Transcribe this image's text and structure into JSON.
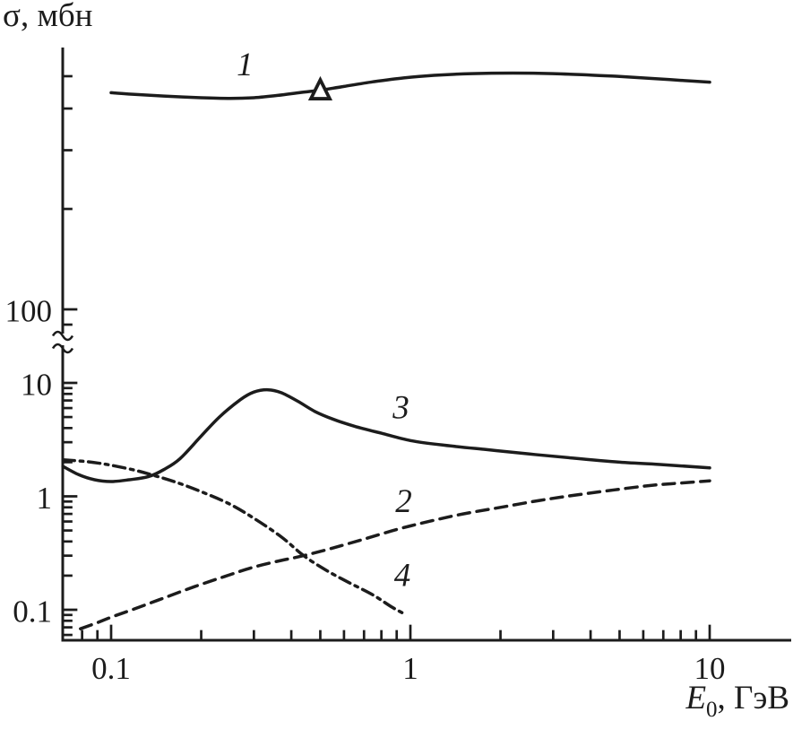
{
  "figure": {
    "y_axis_title": "σ, мбн",
    "x_axis_title_var": "E",
    "x_axis_title_sub": "0",
    "x_axis_title_rest": ", ГэВ"
  },
  "colors": {
    "ink": "#1c1c1c",
    "background": "#ffffff"
  },
  "chart_data": {
    "type": "line",
    "title": "",
    "xlabel": "E0, ГэВ",
    "ylabel": "σ, мбн",
    "x_scale": "log",
    "y_scale": "log",
    "grid": false,
    "legend": "none (curves numbered 1-4 with inline labels)",
    "x_range": [
      0.069,
      18.7
    ],
    "y_range_lower_section": [
      0.054,
      21
    ],
    "y_range_upper_section": [
      85,
      610
    ],
    "y_axis_break_between": [
      21,
      85
    ],
    "x_tick_labels": [
      {
        "v": 0.1,
        "t": "0.1"
      },
      {
        "v": 1,
        "t": "1"
      },
      {
        "v": 10,
        "t": "10"
      }
    ],
    "y_tick_labels": [
      {
        "v": 100,
        "t": "100",
        "sec": "u"
      },
      {
        "v": 10,
        "t": "10",
        "sec": "l"
      },
      {
        "v": 1,
        "t": "1",
        "sec": "l"
      },
      {
        "v": 0.1,
        "t": "0.1",
        "sec": "l"
      }
    ],
    "x_ticks": {
      "major": [
        0.1,
        1,
        10
      ],
      "minor": [
        0.08,
        0.09,
        0.2,
        0.3,
        0.4,
        0.5,
        0.6,
        0.7,
        0.8,
        0.9,
        2,
        3,
        4,
        5,
        6,
        7,
        8,
        9
      ]
    },
    "y_ticks_lower": {
      "major": [
        10,
        1,
        0.1
      ],
      "minor": [
        9,
        8,
        7,
        6,
        5,
        4,
        3,
        2,
        0.9,
        0.8,
        0.7,
        0.6,
        0.5,
        0.4,
        0.3,
        0.2,
        0.09,
        0.08,
        0.07,
        0.06
      ]
    },
    "y_ticks_upper": {
      "major": [
        100
      ],
      "minor": [
        500,
        400,
        300,
        200,
        90
      ]
    },
    "series": [
      {
        "id": "curve-1",
        "label": "1",
        "style": "solid",
        "section": "u",
        "label_at": [
          0.28,
          540
        ],
        "marker": {
          "shape": "open-triangle",
          "at": [
            0.5,
            454
          ]
        },
        "points": [
          [
            0.1,
            446
          ],
          [
            0.12,
            441
          ],
          [
            0.15,
            436
          ],
          [
            0.2,
            431
          ],
          [
            0.25,
            429
          ],
          [
            0.3,
            431
          ],
          [
            0.36,
            438
          ],
          [
            0.43,
            447
          ],
          [
            0.5,
            454
          ],
          [
            0.6,
            466
          ],
          [
            0.75,
            481
          ],
          [
            0.95,
            494
          ],
          [
            1.2,
            503
          ],
          [
            1.6,
            509
          ],
          [
            2.2,
            511
          ],
          [
            3.0,
            509
          ],
          [
            4.0,
            504
          ],
          [
            5.0,
            499
          ],
          [
            6.5,
            492
          ],
          [
            8.0,
            486
          ],
          [
            10,
            480
          ]
        ]
      },
      {
        "id": "curve-3",
        "label": "3",
        "style": "solid",
        "section": "l",
        "label_at": [
          0.93,
          6.0
        ],
        "points": [
          [
            0.069,
            1.84
          ],
          [
            0.078,
            1.55
          ],
          [
            0.088,
            1.4
          ],
          [
            0.1,
            1.35
          ],
          [
            0.115,
            1.4
          ],
          [
            0.133,
            1.49
          ],
          [
            0.15,
            1.72
          ],
          [
            0.17,
            2.15
          ],
          [
            0.2,
            3.4
          ],
          [
            0.23,
            5.0
          ],
          [
            0.27,
            7.1
          ],
          [
            0.3,
            8.3
          ],
          [
            0.335,
            8.7
          ],
          [
            0.37,
            8.2
          ],
          [
            0.42,
            6.9
          ],
          [
            0.48,
            5.6
          ],
          [
            0.55,
            4.8
          ],
          [
            0.65,
            4.15
          ],
          [
            0.8,
            3.6
          ],
          [
            1.0,
            3.1
          ],
          [
            1.3,
            2.82
          ],
          [
            1.8,
            2.58
          ],
          [
            2.5,
            2.36
          ],
          [
            3.5,
            2.17
          ],
          [
            5.0,
            2.0
          ],
          [
            7.0,
            1.9
          ],
          [
            10,
            1.78
          ]
        ]
      },
      {
        "id": "curve-2",
        "label": "2",
        "style": "dashed",
        "section": "l",
        "label_at": [
          0.95,
          0.9
        ],
        "points": [
          [
            0.079,
            0.068
          ],
          [
            0.09,
            0.077
          ],
          [
            0.1,
            0.086
          ],
          [
            0.12,
            0.102
          ],
          [
            0.15,
            0.127
          ],
          [
            0.19,
            0.16
          ],
          [
            0.24,
            0.197
          ],
          [
            0.3,
            0.238
          ],
          [
            0.37,
            0.272
          ],
          [
            0.44,
            0.3
          ],
          [
            0.55,
            0.35
          ],
          [
            0.7,
            0.42
          ],
          [
            0.9,
            0.51
          ],
          [
            1.15,
            0.6
          ],
          [
            1.5,
            0.7
          ],
          [
            2.0,
            0.8
          ],
          [
            2.7,
            0.92
          ],
          [
            3.6,
            1.03
          ],
          [
            4.8,
            1.14
          ],
          [
            6.4,
            1.25
          ],
          [
            8.0,
            1.31
          ],
          [
            10,
            1.37
          ]
        ]
      },
      {
        "id": "curve-4",
        "label": "4",
        "style": "dashdot",
        "section": "l",
        "label_at": [
          0.94,
          0.2
        ],
        "points": [
          [
            0.069,
            2.1
          ],
          [
            0.08,
            2.04
          ],
          [
            0.09,
            1.97
          ],
          [
            0.1,
            1.88
          ],
          [
            0.12,
            1.7
          ],
          [
            0.14,
            1.52
          ],
          [
            0.165,
            1.33
          ],
          [
            0.2,
            1.1
          ],
          [
            0.25,
            0.85
          ],
          [
            0.3,
            0.64
          ],
          [
            0.37,
            0.44
          ],
          [
            0.44,
            0.3
          ],
          [
            0.52,
            0.225
          ],
          [
            0.62,
            0.175
          ],
          [
            0.75,
            0.135
          ],
          [
            0.87,
            0.105
          ],
          [
            0.97,
            0.09
          ]
        ]
      }
    ]
  }
}
